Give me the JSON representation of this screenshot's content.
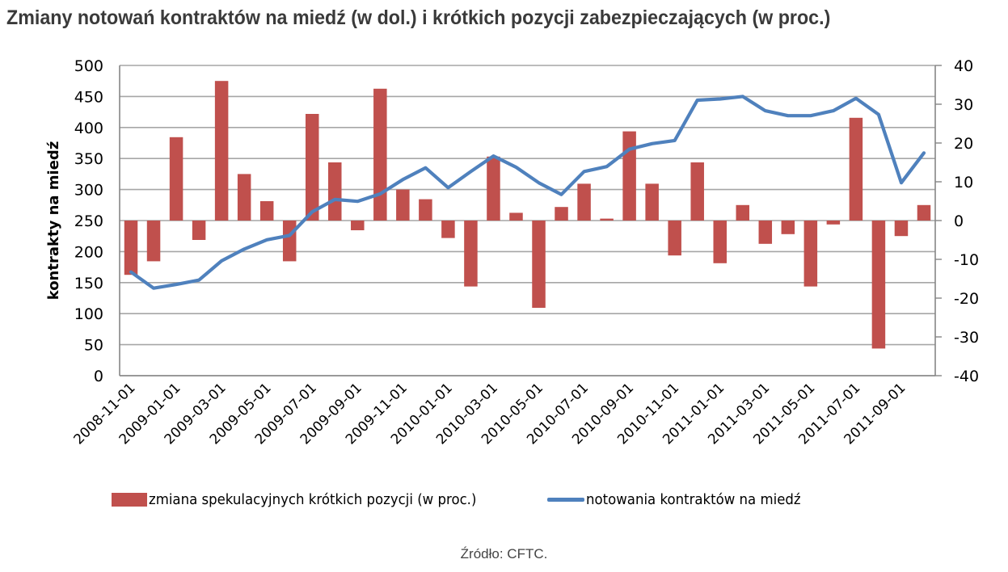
{
  "title": "Zmiany notowań kontraktów na miedź (w dol.) i krótkich pozycji zabezpieczających (w proc.)",
  "source": "Źródło: CFTC.",
  "colors": {
    "bars": "#c0504d",
    "line": "#4f81bd",
    "grid": "#a6a6a6",
    "axis": "#868686"
  },
  "legend": {
    "bars_label": "zmiana spekulacyjnych krótkich pozycji (w proc.)",
    "line_label": "notowania kontraktów na miedź"
  },
  "chart_data": {
    "type": "bar+line",
    "title": "Zmiany notowań kontraktów na miedź (w dol.) i krótkich pozycji zabezpieczających (w proc.)",
    "xlabel": "",
    "ylabel": "kontrakty na miedź",
    "y2label": "",
    "ylim": [
      0,
      500
    ],
    "yticks": [
      0,
      50,
      100,
      150,
      200,
      250,
      300,
      350,
      400,
      450,
      500
    ],
    "y2lim": [
      -40,
      40
    ],
    "y2ticks": [
      -40,
      -30,
      -20,
      -10,
      0,
      10,
      20,
      30,
      40
    ],
    "grid": true,
    "legend_position": "bottom",
    "x_tick_labels": [
      "2008-11-01",
      "2009-01-01",
      "2009-03-01",
      "2009-05-01",
      "2009-07-01",
      "2009-09-01",
      "2009-11-01",
      "2010-01-01",
      "2010-03-01",
      "2010-05-01",
      "2010-07-01",
      "2010-09-01",
      "2010-11-01",
      "2011-01-01",
      "2011-03-01",
      "2011-05-01",
      "2011-07-01",
      "2011-09-01"
    ],
    "x": [
      "2008-11-01",
      "2008-12-01",
      "2009-01-01",
      "2009-02-01",
      "2009-03-01",
      "2009-04-01",
      "2009-05-01",
      "2009-06-01",
      "2009-07-01",
      "2009-08-01",
      "2009-09-01",
      "2009-10-01",
      "2009-11-01",
      "2009-12-01",
      "2010-01-01",
      "2010-02-01",
      "2010-03-01",
      "2010-04-01",
      "2010-05-01",
      "2010-06-01",
      "2010-07-01",
      "2010-08-01",
      "2010-09-01",
      "2010-10-01",
      "2010-11-01",
      "2010-12-01",
      "2011-01-01",
      "2011-02-01",
      "2011-03-01",
      "2011-04-01",
      "2011-05-01",
      "2011-06-01",
      "2011-07-01",
      "2011-08-01",
      "2011-09-01",
      "2011-10-01"
    ],
    "series": [
      {
        "name": "zmiana spekulacyjnych krótkich pozycji (w proc.)",
        "type": "bar",
        "axis": "right",
        "values": [
          -14,
          -10.5,
          21.5,
          -5,
          36,
          12,
          5,
          -10.5,
          27.5,
          15,
          -2.5,
          34,
          8,
          5.5,
          -4.5,
          -17,
          16.5,
          2,
          -22.5,
          3.5,
          9.5,
          0.5,
          23,
          9.5,
          -9,
          15,
          -11,
          4,
          -6,
          -3.5,
          -17,
          -1,
          26.5,
          -33,
          -4,
          4
        ]
      },
      {
        "name": "notowania kontraktów na miedź",
        "type": "line",
        "axis": "left",
        "values": [
          167,
          141,
          147,
          154,
          185,
          204,
          219,
          226,
          264,
          284,
          281,
          293,
          316,
          335,
          303,
          329,
          354,
          336,
          311,
          292,
          329,
          337,
          365,
          374,
          379,
          444,
          446,
          450,
          427,
          419,
          419,
          427,
          447,
          421,
          311,
          359
        ]
      }
    ]
  }
}
